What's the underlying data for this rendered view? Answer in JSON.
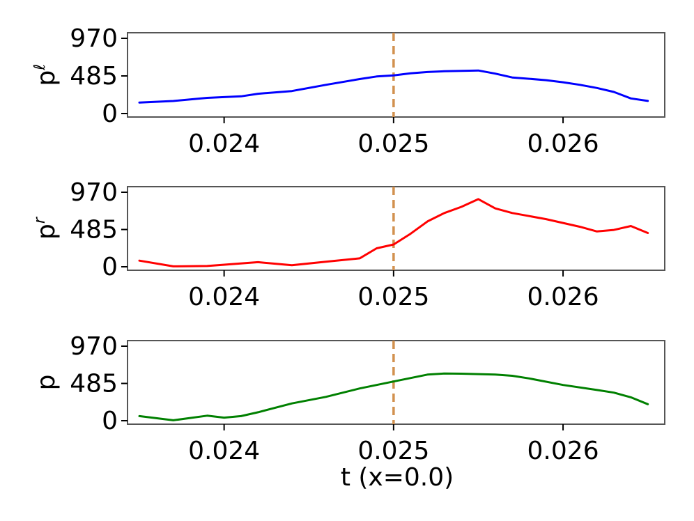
{
  "chart_data": [
    {
      "type": "line",
      "ylabel": "p^ℓ",
      "ylabel_base": "p",
      "ylabel_sup": "ℓ",
      "xlim": [
        0.02343,
        0.0266
      ],
      "ylim": [
        0,
        970
      ],
      "xticks": [
        0.024,
        0.025,
        0.026
      ],
      "xtick_labels": [
        "0.024",
        "0.025",
        "0.026"
      ],
      "yticks": [
        0,
        485,
        970
      ],
      "ytick_labels": [
        "0",
        "485",
        "970"
      ],
      "vline_x": 0.025,
      "grid": false,
      "series": [
        {
          "color": "#0000ff",
          "x": [
            0.0235,
            0.0237,
            0.0239,
            0.0241,
            0.0242,
            0.0244,
            0.0246,
            0.0248,
            0.0249,
            0.025,
            0.0251,
            0.0252,
            0.0253,
            0.0254,
            0.0255,
            0.0256,
            0.0257,
            0.0258,
            0.0259,
            0.026,
            0.0261,
            0.0262,
            0.0263,
            0.0264,
            0.0265
          ],
          "y": [
            142,
            162,
            202,
            222,
            255,
            290,
            370,
            445,
            478,
            492,
            518,
            535,
            545,
            550,
            555,
            515,
            465,
            448,
            430,
            403,
            370,
            330,
            278,
            195,
            163
          ]
        }
      ]
    },
    {
      "type": "line",
      "ylabel": "p^r",
      "ylabel_base": "p",
      "ylabel_sup": "r",
      "xlim": [
        0.02343,
        0.0266
      ],
      "ylim": [
        0,
        970
      ],
      "xticks": [
        0.024,
        0.025,
        0.026
      ],
      "xtick_labels": [
        "0.024",
        "0.025",
        "0.026"
      ],
      "yticks": [
        0,
        485,
        970
      ],
      "ytick_labels": [
        "0",
        "485",
        "970"
      ],
      "vline_x": 0.025,
      "grid": false,
      "series": [
        {
          "color": "#ff0000",
          "x": [
            0.0235,
            0.0237,
            0.0239,
            0.0242,
            0.0244,
            0.0246,
            0.0248,
            0.0249,
            0.025,
            0.0251,
            0.0252,
            0.0253,
            0.0254,
            0.0255,
            0.0256,
            0.0257,
            0.0258,
            0.0259,
            0.026,
            0.0261,
            0.0262,
            0.0263,
            0.0264,
            0.0265
          ],
          "y": [
            80,
            5,
            10,
            60,
            20,
            65,
            110,
            240,
            290,
            430,
            590,
            700,
            780,
            880,
            760,
            700,
            660,
            620,
            570,
            520,
            460,
            480,
            530,
            440
          ]
        }
      ]
    },
    {
      "type": "line",
      "ylabel": "p",
      "ylabel_base": "p",
      "ylabel_sup": "",
      "xlabel": "t (x=0.0)",
      "xlim": [
        0.02343,
        0.0266
      ],
      "ylim": [
        0,
        970
      ],
      "xticks": [
        0.024,
        0.025,
        0.026
      ],
      "xtick_labels": [
        "0.024",
        "0.025",
        "0.026"
      ],
      "yticks": [
        0,
        485,
        970
      ],
      "ytick_labels": [
        "0",
        "485",
        "970"
      ],
      "vline_x": 0.025,
      "grid": false,
      "series": [
        {
          "color": "#008000",
          "x": [
            0.0235,
            0.0237,
            0.0239,
            0.024,
            0.0241,
            0.0242,
            0.0244,
            0.0246,
            0.0248,
            0.025,
            0.0252,
            0.0253,
            0.0254,
            0.0256,
            0.0257,
            0.0258,
            0.026,
            0.0262,
            0.0263,
            0.0264,
            0.0265
          ],
          "y": [
            60,
            5,
            65,
            40,
            60,
            110,
            225,
            310,
            420,
            510,
            600,
            615,
            612,
            600,
            585,
            550,
            465,
            400,
            365,
            305,
            215
          ]
        }
      ]
    }
  ],
  "style": {
    "vline_color": "#d2914f",
    "axes_color": "#000000",
    "spine_color": "#555555"
  }
}
